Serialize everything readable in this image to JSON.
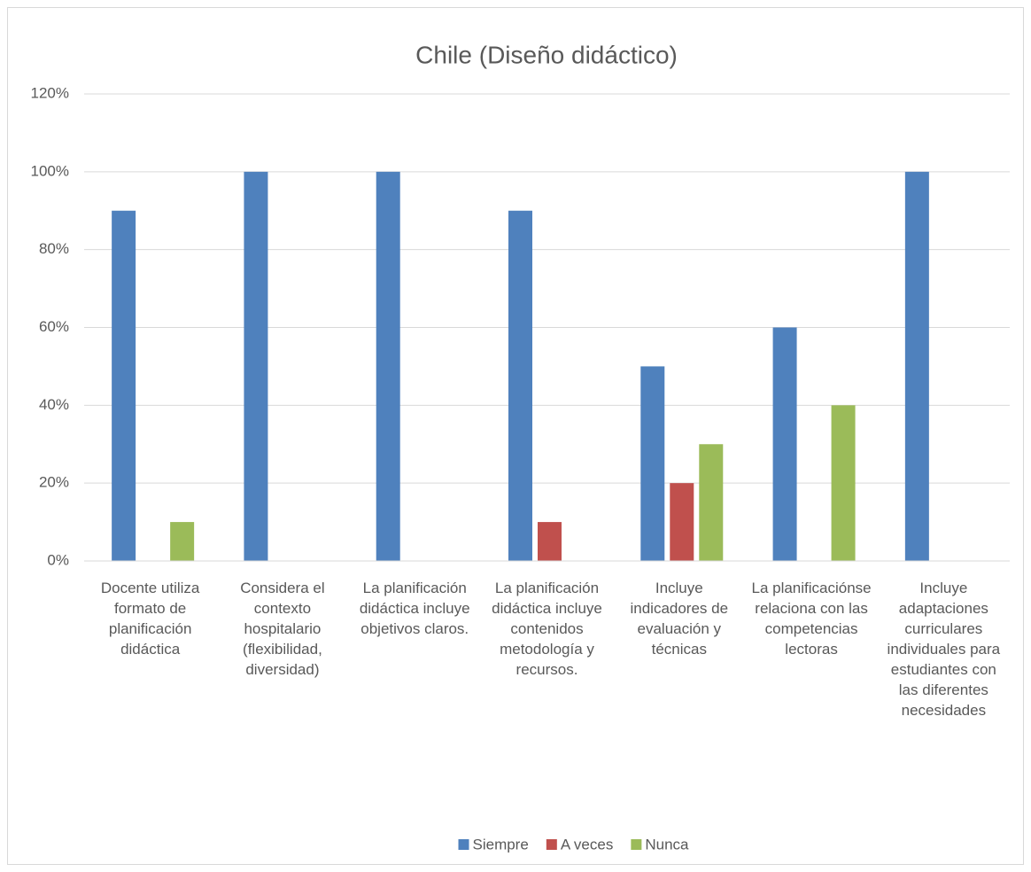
{
  "chart_data": {
    "type": "bar",
    "title": "Chile (Diseño didáctico)",
    "categories": [
      "Docente utiliza formato de planificación didáctica",
      "Considera el contexto hospitalario (flexibilidad, diversidad)",
      "La planificación didáctica incluye objetivos claros.",
      "La planificación didáctica incluye contenidos metodología y recursos.",
      "Incluye indicadores de evaluación y técnicas",
      "La planificaciónse relaciona con las competencias lectoras",
      "Incluye adaptaciones curriculares individuales para estudiantes con las diferentes necesidades"
    ],
    "series": [
      {
        "name": "Siempre",
        "color": "#4f81bd",
        "values": [
          90,
          100,
          100,
          90,
          50,
          60,
          100
        ]
      },
      {
        "name": "A veces",
        "color": "#c0504d",
        "values": [
          0,
          0,
          0,
          10,
          20,
          0,
          0
        ]
      },
      {
        "name": "Nunca",
        "color": "#9bbb59",
        "values": [
          10,
          0,
          0,
          0,
          30,
          40,
          0
        ]
      }
    ],
    "ylim": [
      0,
      120
    ],
    "yticks": [
      {
        "value": 0,
        "label": "0%"
      },
      {
        "value": 20,
        "label": "20%"
      },
      {
        "value": 40,
        "label": "40%"
      },
      {
        "value": 60,
        "label": "60%"
      },
      {
        "value": 80,
        "label": "80%"
      },
      {
        "value": 100,
        "label": "100%"
      },
      {
        "value": 120,
        "label": "120%"
      }
    ],
    "grid": true,
    "legend": "bottom"
  }
}
